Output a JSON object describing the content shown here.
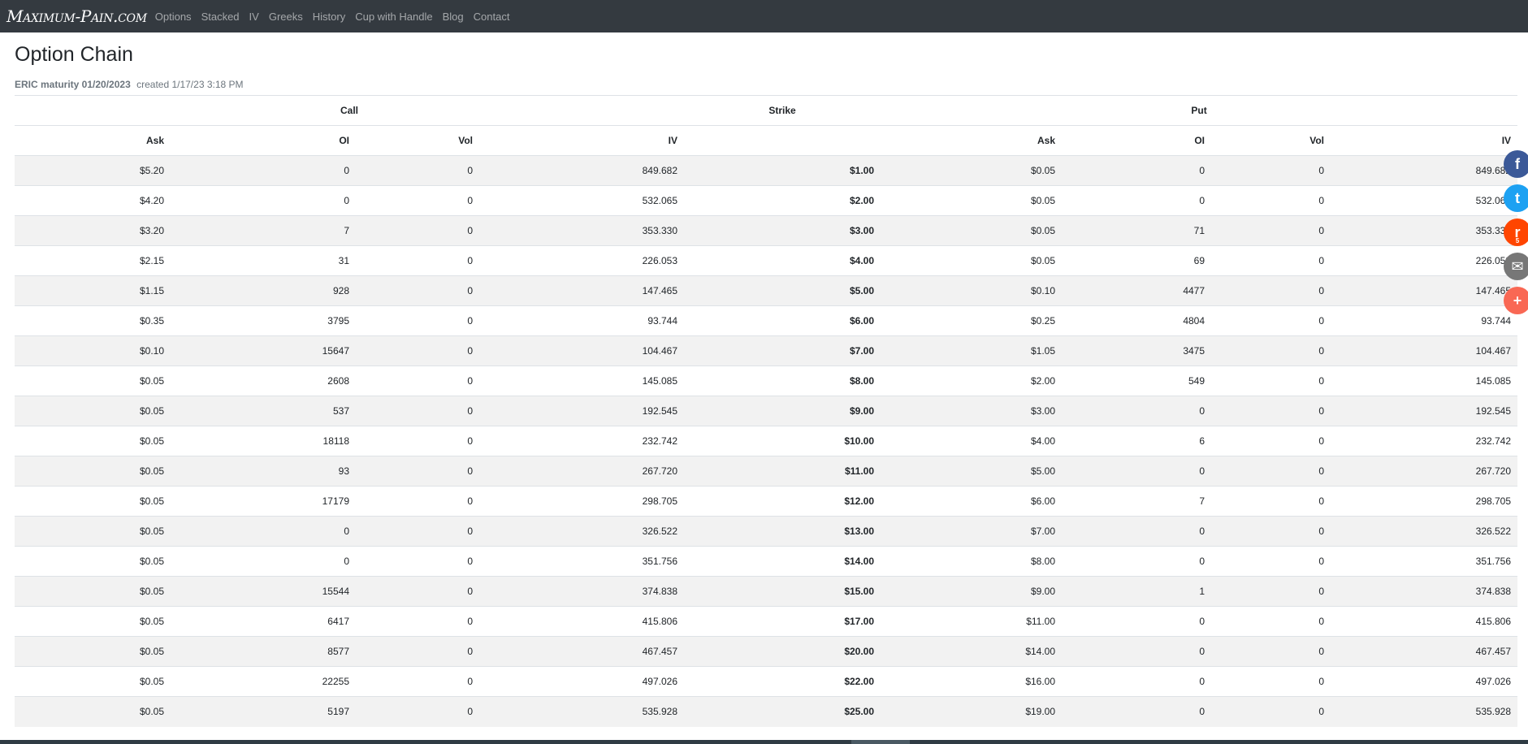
{
  "nav": {
    "brand": "Maximum-Pain.com",
    "links": [
      "Options",
      "Stacked",
      "IV",
      "Greeks",
      "History",
      "Cup with Handle",
      "Blog",
      "Contact"
    ]
  },
  "page": {
    "title": "Option Chain",
    "meta_bold": "ERIC maturity 01/20/2023",
    "meta_created": "created 1/17/23 3:18 PM"
  },
  "table": {
    "group_headers": {
      "call": "Call",
      "strike": "Strike",
      "put": "Put"
    },
    "columns": {
      "ask": "Ask",
      "oi": "OI",
      "vol": "Vol",
      "iv": "IV"
    },
    "rows": [
      {
        "c_ask": "$5.20",
        "c_oi": "0",
        "c_vol": "0",
        "c_iv": "849.682",
        "strike": "$1.00",
        "p_ask": "$0.05",
        "p_oi": "0",
        "p_vol": "0",
        "p_iv": "849.682"
      },
      {
        "c_ask": "$4.20",
        "c_oi": "0",
        "c_vol": "0",
        "c_iv": "532.065",
        "strike": "$2.00",
        "p_ask": "$0.05",
        "p_oi": "0",
        "p_vol": "0",
        "p_iv": "532.065"
      },
      {
        "c_ask": "$3.20",
        "c_oi": "7",
        "c_vol": "0",
        "c_iv": "353.330",
        "strike": "$3.00",
        "p_ask": "$0.05",
        "p_oi": "71",
        "p_vol": "0",
        "p_iv": "353.330"
      },
      {
        "c_ask": "$2.15",
        "c_oi": "31",
        "c_vol": "0",
        "c_iv": "226.053",
        "strike": "$4.00",
        "p_ask": "$0.05",
        "p_oi": "69",
        "p_vol": "0",
        "p_iv": "226.053"
      },
      {
        "c_ask": "$1.15",
        "c_oi": "928",
        "c_vol": "0",
        "c_iv": "147.465",
        "strike": "$5.00",
        "p_ask": "$0.10",
        "p_oi": "4477",
        "p_vol": "0",
        "p_iv": "147.465"
      },
      {
        "c_ask": "$0.35",
        "c_oi": "3795",
        "c_vol": "0",
        "c_iv": "93.744",
        "strike": "$6.00",
        "p_ask": "$0.25",
        "p_oi": "4804",
        "p_vol": "0",
        "p_iv": "93.744"
      },
      {
        "c_ask": "$0.10",
        "c_oi": "15647",
        "c_vol": "0",
        "c_iv": "104.467",
        "strike": "$7.00",
        "p_ask": "$1.05",
        "p_oi": "3475",
        "p_vol": "0",
        "p_iv": "104.467"
      },
      {
        "c_ask": "$0.05",
        "c_oi": "2608",
        "c_vol": "0",
        "c_iv": "145.085",
        "strike": "$8.00",
        "p_ask": "$2.00",
        "p_oi": "549",
        "p_vol": "0",
        "p_iv": "145.085"
      },
      {
        "c_ask": "$0.05",
        "c_oi": "537",
        "c_vol": "0",
        "c_iv": "192.545",
        "strike": "$9.00",
        "p_ask": "$3.00",
        "p_oi": "0",
        "p_vol": "0",
        "p_iv": "192.545"
      },
      {
        "c_ask": "$0.05",
        "c_oi": "18118",
        "c_vol": "0",
        "c_iv": "232.742",
        "strike": "$10.00",
        "p_ask": "$4.00",
        "p_oi": "6",
        "p_vol": "0",
        "p_iv": "232.742"
      },
      {
        "c_ask": "$0.05",
        "c_oi": "93",
        "c_vol": "0",
        "c_iv": "267.720",
        "strike": "$11.00",
        "p_ask": "$5.00",
        "p_oi": "0",
        "p_vol": "0",
        "p_iv": "267.720"
      },
      {
        "c_ask": "$0.05",
        "c_oi": "17179",
        "c_vol": "0",
        "c_iv": "298.705",
        "strike": "$12.00",
        "p_ask": "$6.00",
        "p_oi": "7",
        "p_vol": "0",
        "p_iv": "298.705"
      },
      {
        "c_ask": "$0.05",
        "c_oi": "0",
        "c_vol": "0",
        "c_iv": "326.522",
        "strike": "$13.00",
        "p_ask": "$7.00",
        "p_oi": "0",
        "p_vol": "0",
        "p_iv": "326.522"
      },
      {
        "c_ask": "$0.05",
        "c_oi": "0",
        "c_vol": "0",
        "c_iv": "351.756",
        "strike": "$14.00",
        "p_ask": "$8.00",
        "p_oi": "0",
        "p_vol": "0",
        "p_iv": "351.756"
      },
      {
        "c_ask": "$0.05",
        "c_oi": "15544",
        "c_vol": "0",
        "c_iv": "374.838",
        "strike": "$15.00",
        "p_ask": "$9.00",
        "p_oi": "1",
        "p_vol": "0",
        "p_iv": "374.838"
      },
      {
        "c_ask": "$0.05",
        "c_oi": "6417",
        "c_vol": "0",
        "c_iv": "415.806",
        "strike": "$17.00",
        "p_ask": "$11.00",
        "p_oi": "0",
        "p_vol": "0",
        "p_iv": "415.806"
      },
      {
        "c_ask": "$0.05",
        "c_oi": "8577",
        "c_vol": "0",
        "c_iv": "467.457",
        "strike": "$20.00",
        "p_ask": "$14.00",
        "p_oi": "0",
        "p_vol": "0",
        "p_iv": "467.457"
      },
      {
        "c_ask": "$0.05",
        "c_oi": "22255",
        "c_vol": "0",
        "c_iv": "497.026",
        "strike": "$22.00",
        "p_ask": "$16.00",
        "p_oi": "0",
        "p_vol": "0",
        "p_iv": "497.026"
      },
      {
        "c_ask": "$0.05",
        "c_oi": "5197",
        "c_vol": "0",
        "c_iv": "535.928",
        "strike": "$25.00",
        "p_ask": "$19.00",
        "p_oi": "0",
        "p_vol": "0",
        "p_iv": "535.928"
      }
    ]
  },
  "share": {
    "buttons": [
      {
        "name": "facebook-icon",
        "glyph": "f"
      },
      {
        "name": "twitter-icon",
        "glyph": "t"
      },
      {
        "name": "reddit-icon",
        "glyph": "r",
        "count": "5"
      },
      {
        "name": "email-icon",
        "glyph": "✉"
      },
      {
        "name": "plus-icon",
        "glyph": "+"
      }
    ]
  },
  "colors": {
    "navbar": "#343a40",
    "stripe": "#f2f2f2",
    "facebook": "#3b5998",
    "twitter": "#1da1f2",
    "reddit": "#ff4500",
    "email": "#777777",
    "more": "#f96854"
  }
}
